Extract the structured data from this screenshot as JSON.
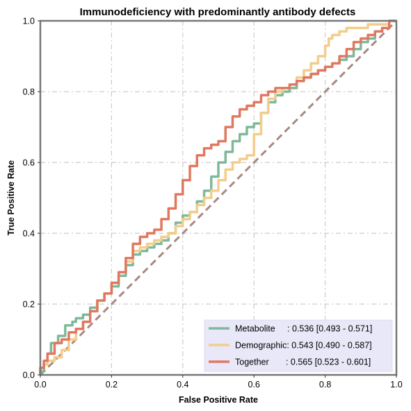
{
  "chart_data": {
    "type": "line",
    "title": "Immunodeficiency with predominantly antibody defects",
    "xlabel": "False Positive Rate",
    "ylabel": "True Positive Rate",
    "xlim": [
      0,
      1
    ],
    "ylim": [
      0,
      1
    ],
    "xticks": [
      "0.0",
      "0.2",
      "0.4",
      "0.6",
      "0.8",
      "1.0"
    ],
    "yticks": [
      "0.0",
      "0.2",
      "0.4",
      "0.6",
      "0.8",
      "1.0"
    ],
    "grid": true,
    "legend_position": "bottom-right",
    "diagonal": {
      "x": [
        0,
        1
      ],
      "y": [
        0,
        1
      ],
      "color": "#a88882",
      "style": "dashed"
    },
    "series": [
      {
        "name": "Metabolite",
        "legend": "Metabolite     : 0.536 [0.493 - 0.571]",
        "color": "#7fb89a",
        "x": [
          0,
          0.01,
          0.02,
          0.03,
          0.05,
          0.07,
          0.09,
          0.1,
          0.12,
          0.14,
          0.16,
          0.18,
          0.2,
          0.22,
          0.24,
          0.26,
          0.28,
          0.3,
          0.32,
          0.34,
          0.36,
          0.38,
          0.4,
          0.42,
          0.44,
          0.46,
          0.48,
          0.5,
          0.52,
          0.54,
          0.56,
          0.58,
          0.6,
          0.62,
          0.64,
          0.66,
          0.68,
          0.7,
          0.72,
          0.74,
          0.76,
          0.78,
          0.8,
          0.82,
          0.84,
          0.86,
          0.88,
          0.9,
          0.92,
          0.94,
          0.96,
          0.98,
          1.0
        ],
        "y": [
          0,
          0.01,
          0.03,
          0.06,
          0.09,
          0.11,
          0.14,
          0.15,
          0.16,
          0.17,
          0.19,
          0.21,
          0.23,
          0.25,
          0.28,
          0.31,
          0.34,
          0.35,
          0.36,
          0.37,
          0.38,
          0.4,
          0.43,
          0.45,
          0.46,
          0.49,
          0.52,
          0.56,
          0.6,
          0.63,
          0.66,
          0.68,
          0.7,
          0.71,
          0.74,
          0.77,
          0.79,
          0.8,
          0.81,
          0.83,
          0.84,
          0.85,
          0.86,
          0.87,
          0.88,
          0.89,
          0.9,
          0.92,
          0.94,
          0.95,
          0.97,
          0.98,
          1.0
        ]
      },
      {
        "name": "Demographic",
        "legend": "Demographic: 0.543 [0.490 - 0.587]",
        "color": "#f2cd8c",
        "x": [
          0,
          0.01,
          0.02,
          0.04,
          0.06,
          0.08,
          0.1,
          0.12,
          0.14,
          0.16,
          0.18,
          0.2,
          0.22,
          0.24,
          0.26,
          0.28,
          0.3,
          0.32,
          0.34,
          0.36,
          0.38,
          0.4,
          0.42,
          0.44,
          0.46,
          0.48,
          0.5,
          0.52,
          0.54,
          0.56,
          0.58,
          0.6,
          0.62,
          0.64,
          0.66,
          0.68,
          0.7,
          0.72,
          0.74,
          0.76,
          0.78,
          0.8,
          0.81,
          0.82,
          0.84,
          0.86,
          0.88,
          0.9,
          0.92,
          0.94,
          0.96,
          0.98,
          1.0
        ],
        "y": [
          0,
          0.02,
          0.03,
          0.04,
          0.05,
          0.07,
          0.1,
          0.13,
          0.15,
          0.18,
          0.21,
          0.23,
          0.26,
          0.29,
          0.32,
          0.35,
          0.36,
          0.37,
          0.38,
          0.39,
          0.4,
          0.42,
          0.44,
          0.46,
          0.48,
          0.5,
          0.52,
          0.55,
          0.58,
          0.6,
          0.61,
          0.62,
          0.68,
          0.74,
          0.78,
          0.8,
          0.81,
          0.82,
          0.84,
          0.86,
          0.88,
          0.9,
          0.93,
          0.95,
          0.96,
          0.97,
          0.98,
          0.98,
          0.98,
          0.99,
          0.99,
          0.99,
          1.0
        ]
      },
      {
        "name": "Together",
        "legend": "Together       : 0.565 [0.523 - 0.601]",
        "color": "#e07861",
        "x": [
          0,
          0.01,
          0.02,
          0.04,
          0.06,
          0.08,
          0.1,
          0.12,
          0.14,
          0.16,
          0.18,
          0.2,
          0.22,
          0.24,
          0.26,
          0.28,
          0.3,
          0.32,
          0.34,
          0.36,
          0.38,
          0.4,
          0.42,
          0.44,
          0.46,
          0.48,
          0.5,
          0.52,
          0.54,
          0.56,
          0.58,
          0.6,
          0.62,
          0.64,
          0.66,
          0.68,
          0.7,
          0.72,
          0.74,
          0.76,
          0.78,
          0.8,
          0.82,
          0.84,
          0.86,
          0.88,
          0.9,
          0.92,
          0.94,
          0.96,
          0.98,
          1.0
        ],
        "y": [
          0,
          0.02,
          0.04,
          0.06,
          0.09,
          0.1,
          0.12,
          0.13,
          0.15,
          0.18,
          0.21,
          0.23,
          0.26,
          0.29,
          0.33,
          0.37,
          0.39,
          0.4,
          0.41,
          0.44,
          0.47,
          0.51,
          0.55,
          0.59,
          0.62,
          0.64,
          0.65,
          0.66,
          0.7,
          0.73,
          0.75,
          0.76,
          0.77,
          0.79,
          0.8,
          0.81,
          0.81,
          0.82,
          0.83,
          0.84,
          0.85,
          0.86,
          0.87,
          0.88,
          0.9,
          0.92,
          0.94,
          0.95,
          0.96,
          0.97,
          0.98,
          1.0
        ]
      }
    ]
  }
}
